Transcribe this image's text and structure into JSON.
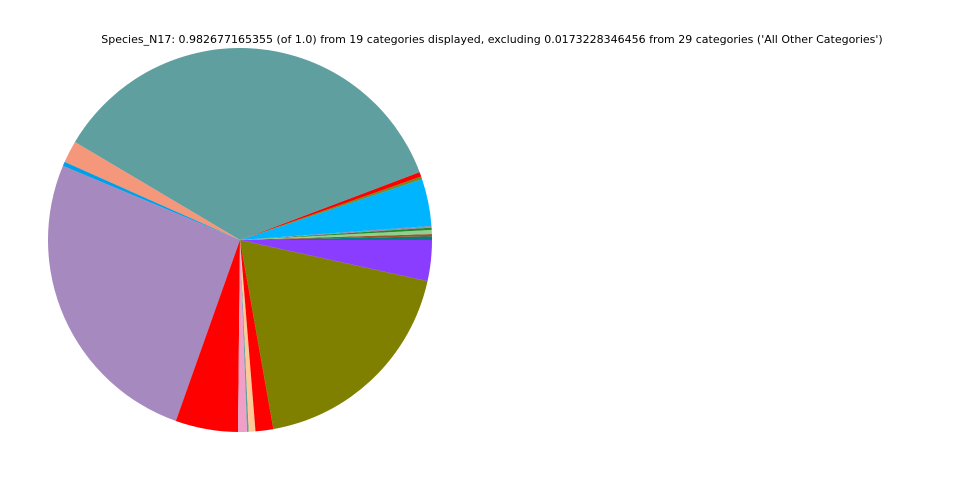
{
  "chart_data": {
    "type": "pie",
    "title": "Species_N17: 0.982677165355 (of 1.0) from 19 categories displayed, excluding 0.0173228346456 from 29 categories ('All Other Categories')",
    "start_angle_deg": 0,
    "direction": "counterclockwise",
    "legend": "none",
    "slices": [
      {
        "value": 0.003,
        "color": "#008080"
      },
      {
        "value": 0.0019,
        "color": "#a0522d"
      },
      {
        "value": 0.0033,
        "color": "#8fcf8f"
      },
      {
        "value": 0.0019,
        "color": "#228b22"
      },
      {
        "value": 0.0014,
        "color": "#9a8cb0"
      },
      {
        "value": 0.039,
        "color": "#00b4ff"
      },
      {
        "value": 0.0022,
        "color": "#6b8e23"
      },
      {
        "value": 0.0038,
        "color": "#ff0000"
      },
      {
        "value": 0.351,
        "color": "#5f9f9f"
      },
      {
        "value": 0.0183,
        "color": "#f4977a"
      },
      {
        "value": 0.0035,
        "color": "#00a0e8"
      },
      {
        "value": 0.2544,
        "color": "#a689bf"
      },
      {
        "value": 0.0516,
        "color": "#ff0000"
      },
      {
        "value": 0.0074,
        "color": "#f0a0c8"
      },
      {
        "value": 0.0014,
        "color": "#5f9f9f"
      },
      {
        "value": 0.0055,
        "color": "#ffc896"
      },
      {
        "value": 0.0147,
        "color": "#ff0000"
      },
      {
        "value": 0.1845,
        "color": "#808000"
      },
      {
        "value": 0.0338,
        "color": "#8b3dff"
      }
    ]
  }
}
